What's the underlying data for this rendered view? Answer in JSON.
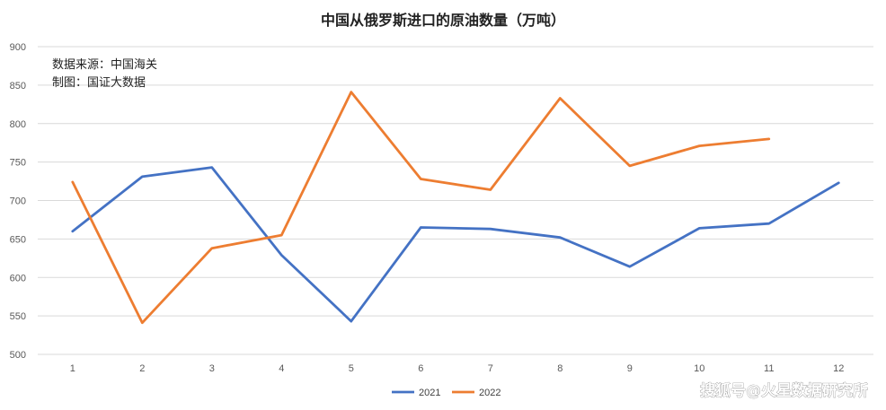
{
  "chart_data": {
    "type": "line",
    "title": "中国从俄罗斯进口的原油数量（万吨）",
    "categories": [
      "1",
      "2",
      "3",
      "4",
      "5",
      "6",
      "7",
      "8",
      "9",
      "10",
      "11",
      "12"
    ],
    "ylim": [
      500,
      900
    ],
    "yticks": [
      500,
      550,
      600,
      650,
      700,
      750,
      800,
      850,
      900
    ],
    "grid": true,
    "legend_position": "bottom",
    "annotations": [
      "数据来源：中国海关",
      "制图：国证大数据"
    ],
    "series": [
      {
        "name": "2021",
        "color": "#4472c4",
        "values": [
          660,
          731,
          743,
          629,
          543,
          665,
          663,
          652,
          614,
          664,
          670,
          723
        ]
      },
      {
        "name": "2022",
        "color": "#ed7d31",
        "values": [
          724,
          541,
          638,
          655,
          841,
          728,
          714,
          833,
          745,
          771,
          780,
          null
        ]
      }
    ]
  },
  "watermark": "搜狐号@火星数据研究所"
}
